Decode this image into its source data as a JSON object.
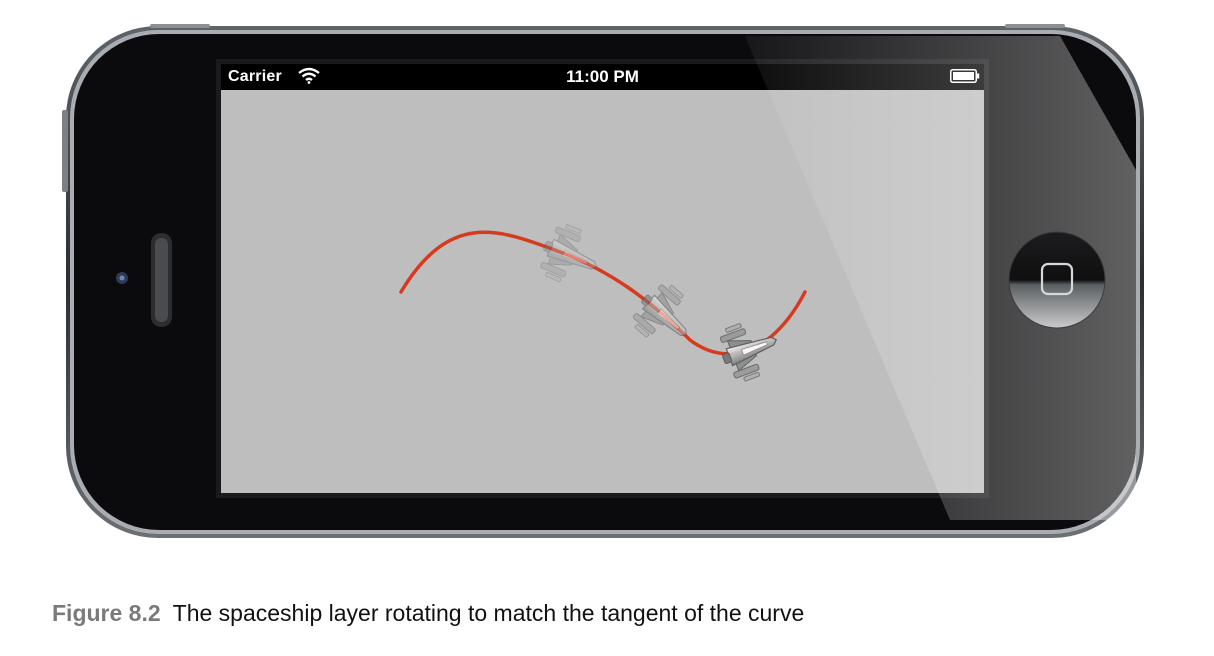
{
  "status_bar": {
    "carrier": "Carrier",
    "time": "11:00 PM",
    "signal_icon": "wifi-icon",
    "battery_icon": "battery-icon"
  },
  "screen": {
    "background": "#bebebe",
    "curve_color": "#d63a1f",
    "spaceship_icon": "spaceship-icon",
    "spaceship_count": 3
  },
  "caption": {
    "label": "Figure 8.2",
    "text": "The spaceship layer rotating to match the tangent of the curve"
  }
}
